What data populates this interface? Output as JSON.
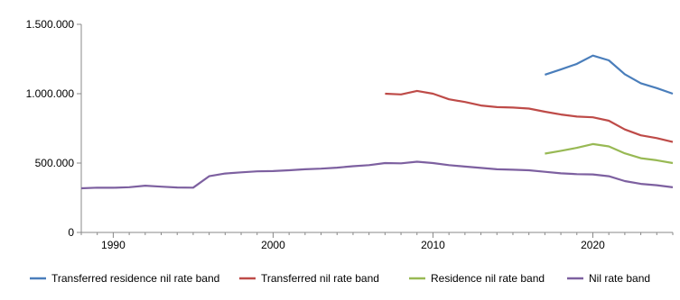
{
  "chart_data": {
    "type": "line",
    "title": "",
    "xlabel": "",
    "ylabel": "",
    "xlim": [
      1988,
      2025
    ],
    "ylim": [
      0,
      1500000
    ],
    "x_ticks": [
      1990,
      2000,
      2010,
      2020
    ],
    "x_tick_labels": [
      "1990",
      "2000",
      "2010",
      "2020"
    ],
    "y_ticks": [
      0,
      500000,
      1000000,
      1500000
    ],
    "y_tick_labels": [
      "0",
      "500.000",
      "1.000.000",
      "1.500.000"
    ],
    "grid": false,
    "legend_position": "bottom",
    "series": [
      {
        "name": "Transferred residence nil rate band",
        "color": "#4a7ebb",
        "x": [
          2017,
          2018,
          2019,
          2020,
          2021,
          2022,
          2023,
          2024,
          2025
        ],
        "y": [
          1137000,
          1175000,
          1215000,
          1275000,
          1240000,
          1140000,
          1075000,
          1040000,
          1000000
        ]
      },
      {
        "name": "Transferred nil rate band",
        "color": "#be4b48",
        "x": [
          2007,
          2008,
          2009,
          2010,
          2011,
          2012,
          2013,
          2014,
          2015,
          2016,
          2017,
          2018,
          2019,
          2020,
          2021,
          2022,
          2023,
          2024,
          2025
        ],
        "y": [
          1000000,
          995000,
          1020000,
          1000000,
          960000,
          940000,
          915000,
          903000,
          900000,
          893000,
          870000,
          850000,
          835000,
          830000,
          805000,
          742000,
          700000,
          680000,
          652000
        ]
      },
      {
        "name": "Residence nil rate band",
        "color": "#98b954",
        "x": [
          2017,
          2018,
          2019,
          2020,
          2021,
          2022,
          2023,
          2024,
          2025
        ],
        "y": [
          568000,
          588000,
          610000,
          637000,
          620000,
          570000,
          535000,
          520000,
          500000
        ]
      },
      {
        "name": "Nil rate band",
        "color": "#7d60a0",
        "x": [
          1988,
          1989,
          1990,
          1991,
          1992,
          1993,
          1994,
          1995,
          1996,
          1997,
          1998,
          1999,
          2000,
          2001,
          2002,
          2003,
          2004,
          2005,
          2006,
          2007,
          2008,
          2009,
          2010,
          2011,
          2012,
          2013,
          2014,
          2015,
          2016,
          2017,
          2018,
          2019,
          2020,
          2021,
          2022,
          2023,
          2024,
          2025
        ],
        "y": [
          318000,
          323000,
          322000,
          326000,
          337000,
          330000,
          324000,
          323000,
          405000,
          425000,
          433000,
          440000,
          442000,
          448000,
          455000,
          460000,
          467000,
          477000,
          485000,
          500000,
          498000,
          510000,
          500000,
          485000,
          475000,
          465000,
          455000,
          452000,
          448000,
          437000,
          426000,
          420000,
          418000,
          405000,
          370000,
          350000,
          340000,
          325000
        ]
      }
    ]
  }
}
